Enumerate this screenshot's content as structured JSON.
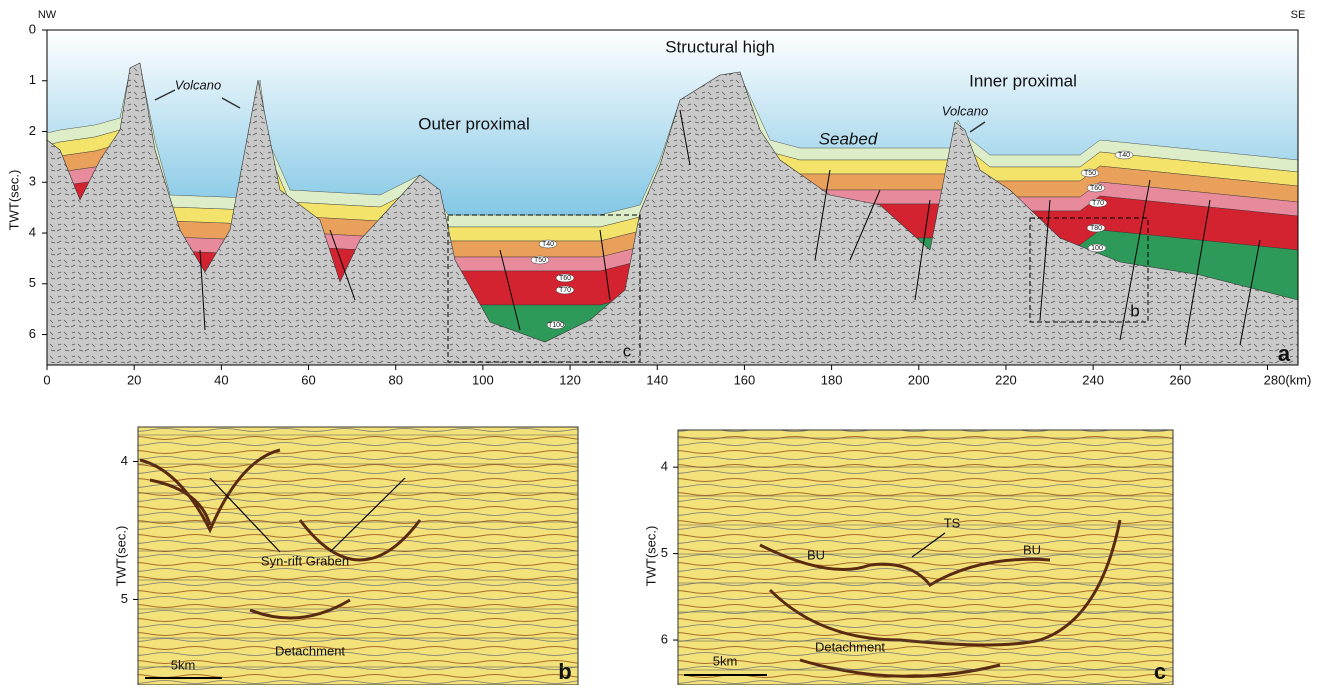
{
  "panel_a": {
    "label": "a",
    "left_label": "NW",
    "right_label": "SE",
    "y_axis_title": "TWT(sec.)",
    "xlim": [
      0,
      287
    ],
    "ylim": [
      0,
      6.6
    ],
    "xticks": [
      0,
      20,
      40,
      60,
      80,
      100,
      120,
      140,
      160,
      180,
      200,
      220,
      240,
      260,
      {
        "value": 280,
        "label": "280(km)"
      }
    ],
    "yticks": [
      0,
      1,
      2,
      3,
      4,
      5,
      6
    ],
    "annotations": {
      "structural_high": "Structural high",
      "outer_proximal": "Outer proximal",
      "inner_proximal": "Inner proximal",
      "seabed": "Seabed",
      "volcano_1": "Volcano",
      "volcano_2": "Volcano"
    },
    "horizons_c": [
      "T40",
      "T50",
      "T60",
      "T70",
      "T100"
    ],
    "horizons_b": [
      "T40",
      "T50",
      "T60",
      "T70",
      "T80",
      "100"
    ],
    "box_labels": [
      "c",
      "b"
    ]
  },
  "panel_b": {
    "label": "b",
    "y_axis_title": "TWT(sec.)",
    "ylim": [
      3.75,
      5.62
    ],
    "yticks": [
      4,
      5
    ],
    "annotations": {
      "graben": "Syn-rift Graben",
      "detachment": "Detachment",
      "scale": "5km"
    }
  },
  "panel_c": {
    "label": "c",
    "y_axis_title": "TWT(sec.)",
    "ylim": [
      3.57,
      6.52
    ],
    "yticks": [
      4,
      5,
      6
    ],
    "annotations": {
      "ts": "TS",
      "bu_left": "BU",
      "bu_right": "BU",
      "detachment": "Detachment",
      "scale": "5km"
    }
  }
}
